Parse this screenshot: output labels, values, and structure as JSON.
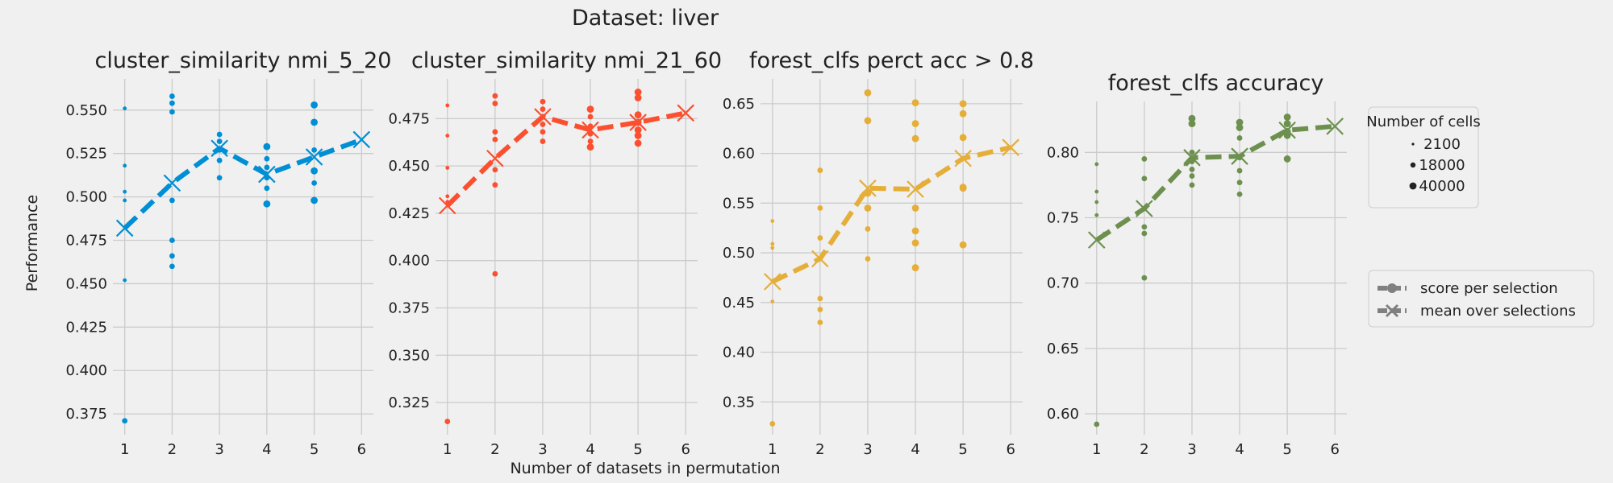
{
  "figure": {
    "suptitle": "Dataset: liver",
    "xlabel": "Number of datasets in permutation",
    "ylabel": "Performance"
  },
  "legend": {
    "size_title": "Number of cells",
    "size_entries": [
      {
        "label": "2100",
        "radius": 1.6
      },
      {
        "label": "18000",
        "radius": 3.2
      },
      {
        "label": "40000",
        "radius": 4.4
      }
    ],
    "style_entries": [
      {
        "label": "score per selection",
        "marker": "circle"
      },
      {
        "label": "mean over selections",
        "marker": "x"
      }
    ],
    "color": "#808080"
  },
  "chart_data": [
    {
      "type": "scatter",
      "title": "cluster_similarity nmi_5_20",
      "color": "#008fd5",
      "ylim": [
        0.363,
        0.568
      ],
      "yticks": [
        0.375,
        0.4,
        0.425,
        0.45,
        0.475,
        0.5,
        0.525,
        0.55
      ],
      "tick_decimals": 3,
      "xticks": [
        1,
        2,
        3,
        4,
        5,
        6
      ],
      "grid": true,
      "mean": {
        "x": [
          1,
          2,
          3,
          4,
          5,
          6
        ],
        "y": [
          0.482,
          0.508,
          0.528,
          0.513,
          0.523,
          0.533
        ]
      },
      "points": [
        [
          1,
          0.551,
          1
        ],
        [
          1,
          0.518,
          1
        ],
        [
          1,
          0.503,
          1
        ],
        [
          1,
          0.498,
          1
        ],
        [
          1,
          0.452,
          1
        ],
        [
          1,
          0.371,
          2
        ],
        [
          2,
          0.558,
          2
        ],
        [
          2,
          0.554,
          2
        ],
        [
          2,
          0.549,
          2
        ],
        [
          2,
          0.498,
          2
        ],
        [
          2,
          0.475,
          2
        ],
        [
          2,
          0.466,
          2
        ],
        [
          2,
          0.46,
          2
        ],
        [
          3,
          0.536,
          2
        ],
        [
          3,
          0.532,
          2
        ],
        [
          3,
          0.527,
          2
        ],
        [
          3,
          0.521,
          2
        ],
        [
          3,
          0.511,
          2
        ],
        [
          4,
          0.529,
          3
        ],
        [
          4,
          0.522,
          2
        ],
        [
          4,
          0.517,
          2
        ],
        [
          4,
          0.511,
          2
        ],
        [
          4,
          0.505,
          2
        ],
        [
          4,
          0.496,
          3
        ],
        [
          5,
          0.553,
          3
        ],
        [
          5,
          0.543,
          3
        ],
        [
          5,
          0.527,
          2
        ],
        [
          5,
          0.515,
          3
        ],
        [
          5,
          0.508,
          2
        ],
        [
          5,
          0.498,
          3
        ]
      ]
    },
    {
      "type": "scatter",
      "title": "cluster_similarity nmi_21_60",
      "color": "#fc4f30",
      "ylim": [
        0.308,
        0.496
      ],
      "yticks": [
        0.325,
        0.35,
        0.375,
        0.4,
        0.425,
        0.45,
        0.475
      ],
      "tick_decimals": 3,
      "xticks": [
        1,
        2,
        3,
        4,
        5,
        6
      ],
      "grid": true,
      "mean": {
        "x": [
          1,
          2,
          3,
          4,
          5,
          6
        ],
        "y": [
          0.429,
          0.454,
          0.476,
          0.469,
          0.473,
          0.478
        ]
      },
      "points": [
        [
          1,
          0.482,
          1
        ],
        [
          1,
          0.466,
          1
        ],
        [
          1,
          0.449,
          1
        ],
        [
          1,
          0.434,
          1
        ],
        [
          1,
          0.431,
          1
        ],
        [
          1,
          0.315,
          2
        ],
        [
          2,
          0.487,
          2
        ],
        [
          2,
          0.483,
          2
        ],
        [
          2,
          0.468,
          2
        ],
        [
          2,
          0.464,
          2
        ],
        [
          2,
          0.448,
          2
        ],
        [
          2,
          0.44,
          2
        ],
        [
          2,
          0.393,
          2
        ],
        [
          3,
          0.484,
          2
        ],
        [
          3,
          0.48,
          2
        ],
        [
          3,
          0.476,
          2
        ],
        [
          3,
          0.472,
          2
        ],
        [
          3,
          0.468,
          2
        ],
        [
          3,
          0.463,
          2
        ],
        [
          4,
          0.48,
          3
        ],
        [
          4,
          0.476,
          2
        ],
        [
          4,
          0.471,
          2
        ],
        [
          4,
          0.467,
          2
        ],
        [
          4,
          0.463,
          2
        ],
        [
          4,
          0.46,
          3
        ],
        [
          5,
          0.489,
          3
        ],
        [
          5,
          0.486,
          3
        ],
        [
          5,
          0.477,
          3
        ],
        [
          5,
          0.473,
          3
        ],
        [
          5,
          0.469,
          3
        ],
        [
          5,
          0.466,
          3
        ],
        [
          5,
          0.462,
          3
        ]
      ]
    },
    {
      "type": "scatter",
      "title": "forest_clfs perct acc > 0.8",
      "color": "#e5ae38",
      "ylim": [
        0.317,
        0.675
      ],
      "yticks": [
        0.35,
        0.4,
        0.45,
        0.5,
        0.55,
        0.6,
        0.65
      ],
      "tick_decimals": 2,
      "xticks": [
        1,
        2,
        3,
        4,
        5,
        6
      ],
      "grid": true,
      "mean": {
        "x": [
          1,
          2,
          3,
          4,
          5,
          6
        ],
        "y": [
          0.471,
          0.494,
          0.565,
          0.564,
          0.595,
          0.606
        ]
      },
      "points": [
        [
          1,
          0.532,
          1
        ],
        [
          1,
          0.509,
          1
        ],
        [
          1,
          0.505,
          1
        ],
        [
          1,
          0.451,
          1
        ],
        [
          1,
          0.328,
          2
        ],
        [
          2,
          0.583,
          2
        ],
        [
          2,
          0.545,
          2
        ],
        [
          2,
          0.515,
          2
        ],
        [
          2,
          0.454,
          2
        ],
        [
          2,
          0.443,
          2
        ],
        [
          2,
          0.43,
          2
        ],
        [
          3,
          0.661,
          3
        ],
        [
          3,
          0.633,
          3
        ],
        [
          3,
          0.56,
          3
        ],
        [
          3,
          0.545,
          3
        ],
        [
          3,
          0.524,
          2
        ],
        [
          3,
          0.494,
          2
        ],
        [
          4,
          0.651,
          3
        ],
        [
          4,
          0.63,
          3
        ],
        [
          4,
          0.615,
          3
        ],
        [
          4,
          0.545,
          3
        ],
        [
          4,
          0.522,
          3
        ],
        [
          4,
          0.51,
          3
        ],
        [
          4,
          0.485,
          3
        ],
        [
          5,
          0.65,
          3
        ],
        [
          5,
          0.64,
          3
        ],
        [
          5,
          0.616,
          3
        ],
        [
          5,
          0.566,
          3
        ],
        [
          5,
          0.565,
          3
        ],
        [
          5,
          0.508,
          3
        ]
      ]
    },
    {
      "type": "scatter",
      "title": "forest_clfs accuracy",
      "color": "#6d904f",
      "ylim": [
        0.584,
        0.839
      ],
      "yticks": [
        0.6,
        0.65,
        0.7,
        0.75,
        0.8
      ],
      "tick_decimals": 2,
      "xticks": [
        1,
        2,
        3,
        4,
        5,
        6
      ],
      "grid": true,
      "mean": {
        "x": [
          1,
          2,
          3,
          4,
          5,
          6
        ],
        "y": [
          0.733,
          0.757,
          0.796,
          0.797,
          0.817,
          0.82
        ]
      },
      "points": [
        [
          1,
          0.791,
          1
        ],
        [
          1,
          0.77,
          1
        ],
        [
          1,
          0.762,
          1
        ],
        [
          1,
          0.752,
          1
        ],
        [
          1,
          0.592,
          2
        ],
        [
          2,
          0.795,
          2
        ],
        [
          2,
          0.78,
          2
        ],
        [
          2,
          0.743,
          2
        ],
        [
          2,
          0.738,
          2
        ],
        [
          2,
          0.704,
          2
        ],
        [
          3,
          0.826,
          3
        ],
        [
          3,
          0.822,
          3
        ],
        [
          3,
          0.8,
          2
        ],
        [
          3,
          0.793,
          2
        ],
        [
          3,
          0.787,
          2
        ],
        [
          3,
          0.782,
          2
        ],
        [
          3,
          0.775,
          2
        ],
        [
          4,
          0.823,
          3
        ],
        [
          4,
          0.819,
          3
        ],
        [
          4,
          0.811,
          2
        ],
        [
          4,
          0.796,
          2
        ],
        [
          4,
          0.786,
          2
        ],
        [
          4,
          0.777,
          2
        ],
        [
          4,
          0.768,
          2
        ],
        [
          5,
          0.827,
          3
        ],
        [
          5,
          0.822,
          3
        ],
        [
          5,
          0.816,
          3
        ],
        [
          5,
          0.813,
          3
        ],
        [
          5,
          0.795,
          3
        ]
      ]
    }
  ]
}
